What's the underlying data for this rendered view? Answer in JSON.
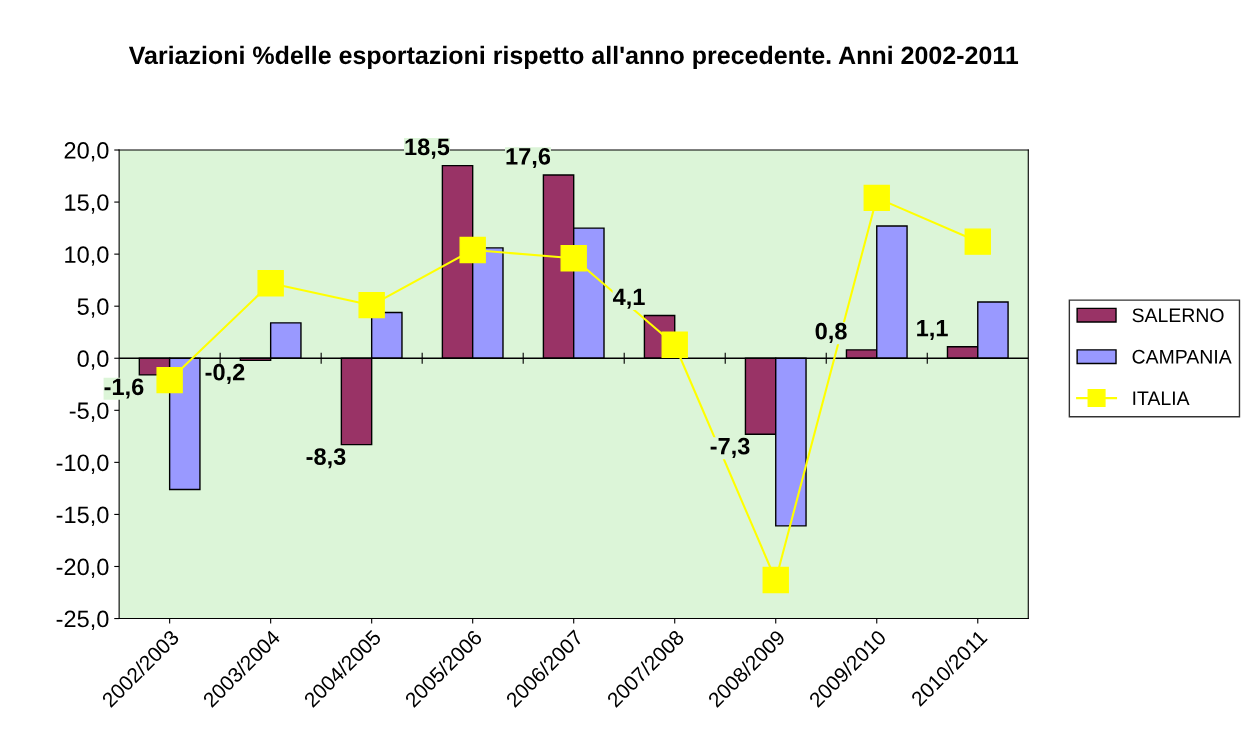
{
  "chart_data": {
    "type": "bar",
    "title": "Variazioni %delle esportazioni rispetto all'anno precedente. Anni 2002-2011",
    "categories": [
      "2002/2003",
      "2003/2004",
      "2004/2005",
      "2005/2006",
      "2006/2007",
      "2007/2008",
      "2008/2009",
      "2009/2010",
      "2010/2011"
    ],
    "series": [
      {
        "name": "SALERNO",
        "color": "#993366",
        "values": [
          -1.6,
          -0.2,
          -8.3,
          18.5,
          17.6,
          4.1,
          -7.3,
          0.8,
          1.1
        ],
        "value_labels": [
          "-1,6",
          "-0,2",
          "-8,3",
          "18,5",
          "17,6",
          "4,1",
          "-7,3",
          "0,8",
          "1,1"
        ]
      },
      {
        "name": "CAMPANIA",
        "color": "#9999ff",
        "values": [
          -12.6,
          3.4,
          4.4,
          10.6,
          12.5,
          null,
          -16.1,
          12.7,
          5.4
        ]
      },
      {
        "name": "ITALIA",
        "type": "line",
        "color": "#ffff00",
        "marker": "square",
        "values": [
          -2.1,
          7.2,
          5.1,
          10.4,
          9.6,
          1.3,
          -21.3,
          15.4,
          11.2
        ]
      }
    ],
    "ylim": [
      -25,
      20
    ],
    "yticks": [
      {
        "value": -25,
        "label": "-25,0"
      },
      {
        "value": -20,
        "label": "-20,0"
      },
      {
        "value": -15,
        "label": "-15,0"
      },
      {
        "value": -10,
        "label": "-10,0"
      },
      {
        "value": -5,
        "label": "-5,0"
      },
      {
        "value": 0,
        "label": "0,0"
      },
      {
        "value": 5,
        "label": "5,0"
      },
      {
        "value": 10,
        "label": "10,0"
      },
      {
        "value": 15,
        "label": "15,0"
      },
      {
        "value": 20,
        "label": "20,0"
      }
    ],
    "ref_lines": [
      {
        "axis": "y",
        "value": 0,
        "color": "#000000"
      }
    ],
    "grid": false,
    "legend": "right"
  }
}
